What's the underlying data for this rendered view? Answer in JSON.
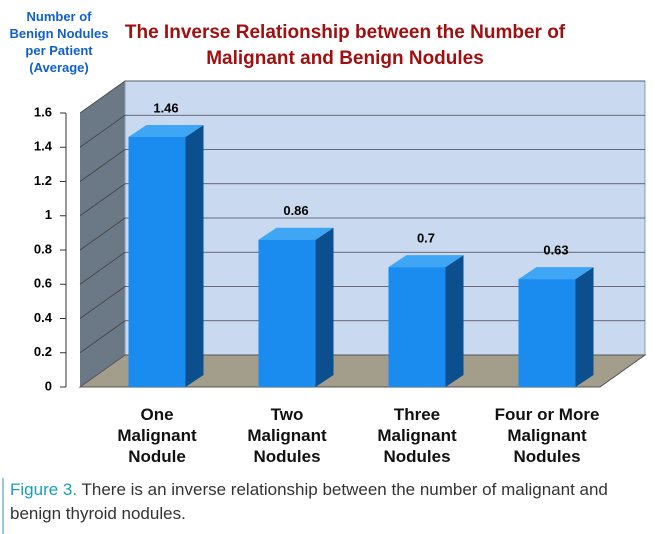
{
  "chart_data": {
    "type": "bar3d",
    "title": "The Inverse Relationship between the Number of Malignant and Benign Nodules",
    "y_label": "Number of\nBenign  Nodules\nper Patient\n(Average)",
    "categories": [
      "One\nMalignant\nNodule",
      "Two\nMalignant\nNodules",
      "Three\nMalignant\nNodules",
      "Four or More\nMalignant\nNodules"
    ],
    "values": [
      1.46,
      0.86,
      0.7,
      0.63
    ],
    "color": "#1a8cf0",
    "ylim": [
      0,
      1.6
    ],
    "yticks": [
      0,
      0.2,
      0.4,
      0.6,
      0.8,
      1,
      1.2,
      1.4,
      1.6
    ],
    "grid": true
  },
  "caption": {
    "label": "Figure 3.",
    "text": "There is an inverse relationship between the number of malignant and benign thyroid nodules."
  }
}
